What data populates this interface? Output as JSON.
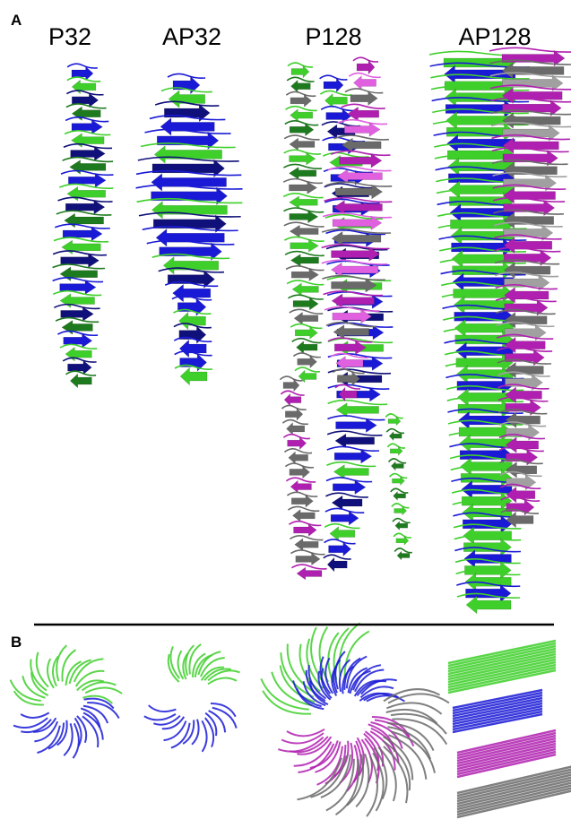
{
  "panel_a": {
    "label": "A",
    "titles": [
      "P32",
      "AP32",
      "P128",
      "AP128"
    ]
  },
  "panel_b": {
    "label": "B"
  }
}
